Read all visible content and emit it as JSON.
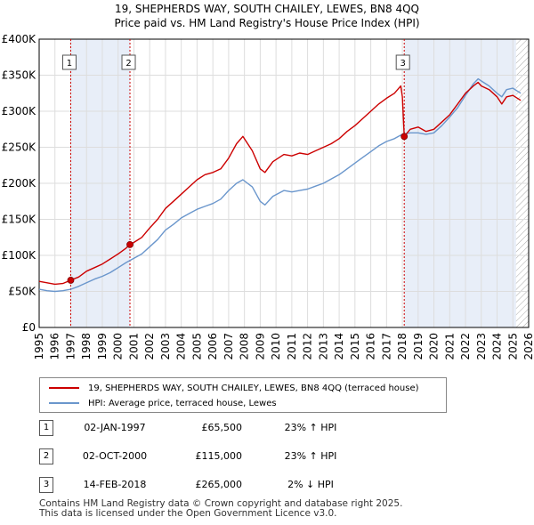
{
  "title": {
    "line1": "19, SHEPHERDS WAY, SOUTH CHAILEY, LEWES, BN8 4QQ",
    "line2": "Price paid vs. HM Land Registry's House Price Index (HPI)"
  },
  "colors": {
    "property": "#cc0000",
    "hpi": "#6a96cc",
    "shade": "#e8eef8",
    "grid": "#dddddd",
    "marker_line": "#cc0000"
  },
  "legend": {
    "property_label": "19, SHEPHERDS WAY, SOUTH CHAILEY, LEWES, BN8 4QQ (terraced house)",
    "hpi_label": "HPI: Average price, terraced house, Lewes"
  },
  "sales": [
    {
      "num": "1",
      "date": "02-JAN-1997",
      "price": "£65,500",
      "hpi": "23% ↑ HPI"
    },
    {
      "num": "2",
      "date": "02-OCT-2000",
      "price": "£115,000",
      "hpi": "23% ↑ HPI"
    },
    {
      "num": "3",
      "date": "14-FEB-2018",
      "price": "£265,000",
      "hpi": "2% ↓ HPI"
    }
  ],
  "footer": {
    "line1": "Contains HM Land Registry data © Crown copyright and database right 2025.",
    "line2": "This data is licensed under the Open Government Licence v3.0."
  },
  "chart_data": {
    "type": "line",
    "title": "19, SHEPHERDS WAY, SOUTH CHAILEY, LEWES, BN8 4QQ — Price paid vs. HM Land Registry's House Price Index (HPI)",
    "xlim": [
      1995,
      2026
    ],
    "ylim": [
      0,
      400000
    ],
    "x_ticks": [
      1995,
      1996,
      1997,
      1998,
      1999,
      2000,
      2001,
      2002,
      2003,
      2004,
      2005,
      2006,
      2007,
      2008,
      2009,
      2010,
      2011,
      2012,
      2013,
      2014,
      2015,
      2016,
      2017,
      2018,
      2019,
      2020,
      2021,
      2022,
      2023,
      2024,
      2025,
      2026
    ],
    "y_ticks": [
      {
        "value": 0,
        "label": "£0"
      },
      {
        "value": 50000,
        "label": "£50K"
      },
      {
        "value": 100000,
        "label": "£100K"
      },
      {
        "value": 150000,
        "label": "£150K"
      },
      {
        "value": 200000,
        "label": "£200K"
      },
      {
        "value": 250000,
        "label": "£250K"
      },
      {
        "value": 300000,
        "label": "£300K"
      },
      {
        "value": 350000,
        "label": "£350K"
      },
      {
        "value": 400000,
        "label": "£400K"
      }
    ],
    "shaded_ranges": [
      [
        1997.0,
        2000.75
      ],
      [
        2018.12,
        2025.2
      ]
    ],
    "hatched_from": 2025.2,
    "sale_markers": [
      {
        "label": "1",
        "x": 1997.0,
        "y": 65500
      },
      {
        "label": "2",
        "x": 2000.75,
        "y": 115000
      },
      {
        "label": "3",
        "x": 2018.12,
        "y": 265000
      }
    ],
    "series": [
      {
        "name": "19, SHEPHERDS WAY, SOUTH CHAILEY, LEWES, BN8 4QQ (terraced house)",
        "color": "#cc0000",
        "points": [
          [
            1995.0,
            64000
          ],
          [
            1995.5,
            62000
          ],
          [
            1996.0,
            60000
          ],
          [
            1996.5,
            61000
          ],
          [
            1997.0,
            65500
          ],
          [
            1997.5,
            70000
          ],
          [
            1998.0,
            78000
          ],
          [
            1998.5,
            83000
          ],
          [
            1999.0,
            88000
          ],
          [
            1999.5,
            95000
          ],
          [
            2000.0,
            102000
          ],
          [
            2000.5,
            110000
          ],
          [
            2000.75,
            115000
          ],
          [
            2001.0,
            118000
          ],
          [
            2001.5,
            125000
          ],
          [
            2002.0,
            138000
          ],
          [
            2002.5,
            150000
          ],
          [
            2003.0,
            165000
          ],
          [
            2003.5,
            175000
          ],
          [
            2004.0,
            185000
          ],
          [
            2004.5,
            195000
          ],
          [
            2005.0,
            205000
          ],
          [
            2005.5,
            212000
          ],
          [
            2006.0,
            215000
          ],
          [
            2006.5,
            220000
          ],
          [
            2007.0,
            235000
          ],
          [
            2007.5,
            255000
          ],
          [
            2007.9,
            265000
          ],
          [
            2008.5,
            245000
          ],
          [
            2009.0,
            220000
          ],
          [
            2009.3,
            215000
          ],
          [
            2009.8,
            230000
          ],
          [
            2010.5,
            240000
          ],
          [
            2011.0,
            238000
          ],
          [
            2011.5,
            242000
          ],
          [
            2012.0,
            240000
          ],
          [
            2012.5,
            245000
          ],
          [
            2013.0,
            250000
          ],
          [
            2013.5,
            255000
          ],
          [
            2014.0,
            262000
          ],
          [
            2014.5,
            272000
          ],
          [
            2015.0,
            280000
          ],
          [
            2015.5,
            290000
          ],
          [
            2016.0,
            300000
          ],
          [
            2016.5,
            310000
          ],
          [
            2017.0,
            318000
          ],
          [
            2017.5,
            325000
          ],
          [
            2017.9,
            335000
          ],
          [
            2018.0,
            320000
          ],
          [
            2018.12,
            265000
          ],
          [
            2018.5,
            275000
          ],
          [
            2019.0,
            278000
          ],
          [
            2019.5,
            272000
          ],
          [
            2020.0,
            275000
          ],
          [
            2020.5,
            285000
          ],
          [
            2021.0,
            295000
          ],
          [
            2021.5,
            310000
          ],
          [
            2022.0,
            325000
          ],
          [
            2022.5,
            335000
          ],
          [
            2022.8,
            340000
          ],
          [
            2023.0,
            335000
          ],
          [
            2023.5,
            330000
          ],
          [
            2024.0,
            320000
          ],
          [
            2024.3,
            310000
          ],
          [
            2024.6,
            320000
          ],
          [
            2025.0,
            322000
          ],
          [
            2025.5,
            315000
          ]
        ]
      },
      {
        "name": "HPI: Average price, terraced house, Lewes",
        "color": "#6a96cc",
        "points": [
          [
            1995.0,
            53000
          ],
          [
            1995.5,
            51000
          ],
          [
            1996.0,
            50000
          ],
          [
            1996.5,
            51000
          ],
          [
            1997.0,
            53000
          ],
          [
            1997.5,
            57000
          ],
          [
            1998.0,
            62000
          ],
          [
            1998.5,
            67000
          ],
          [
            1999.0,
            71000
          ],
          [
            1999.5,
            76000
          ],
          [
            2000.0,
            83000
          ],
          [
            2000.5,
            90000
          ],
          [
            2001.0,
            96000
          ],
          [
            2001.5,
            102000
          ],
          [
            2002.0,
            112000
          ],
          [
            2002.5,
            122000
          ],
          [
            2003.0,
            135000
          ],
          [
            2003.5,
            143000
          ],
          [
            2004.0,
            152000
          ],
          [
            2004.5,
            158000
          ],
          [
            2005.0,
            164000
          ],
          [
            2005.5,
            168000
          ],
          [
            2006.0,
            172000
          ],
          [
            2006.5,
            178000
          ],
          [
            2007.0,
            190000
          ],
          [
            2007.5,
            200000
          ],
          [
            2007.9,
            205000
          ],
          [
            2008.5,
            195000
          ],
          [
            2009.0,
            175000
          ],
          [
            2009.3,
            170000
          ],
          [
            2009.8,
            182000
          ],
          [
            2010.5,
            190000
          ],
          [
            2011.0,
            188000
          ],
          [
            2011.5,
            190000
          ],
          [
            2012.0,
            192000
          ],
          [
            2012.5,
            196000
          ],
          [
            2013.0,
            200000
          ],
          [
            2013.5,
            206000
          ],
          [
            2014.0,
            212000
          ],
          [
            2014.5,
            220000
          ],
          [
            2015.0,
            228000
          ],
          [
            2015.5,
            236000
          ],
          [
            2016.0,
            244000
          ],
          [
            2016.5,
            252000
          ],
          [
            2017.0,
            258000
          ],
          [
            2017.5,
            262000
          ],
          [
            2018.0,
            268000
          ],
          [
            2018.5,
            270000
          ],
          [
            2019.0,
            270000
          ],
          [
            2019.5,
            268000
          ],
          [
            2020.0,
            270000
          ],
          [
            2020.5,
            280000
          ],
          [
            2021.0,
            292000
          ],
          [
            2021.5,
            305000
          ],
          [
            2022.0,
            322000
          ],
          [
            2022.5,
            338000
          ],
          [
            2022.8,
            345000
          ],
          [
            2023.0,
            342000
          ],
          [
            2023.5,
            335000
          ],
          [
            2024.0,
            325000
          ],
          [
            2024.3,
            320000
          ],
          [
            2024.6,
            330000
          ],
          [
            2025.0,
            332000
          ],
          [
            2025.5,
            325000
          ]
        ]
      }
    ]
  }
}
